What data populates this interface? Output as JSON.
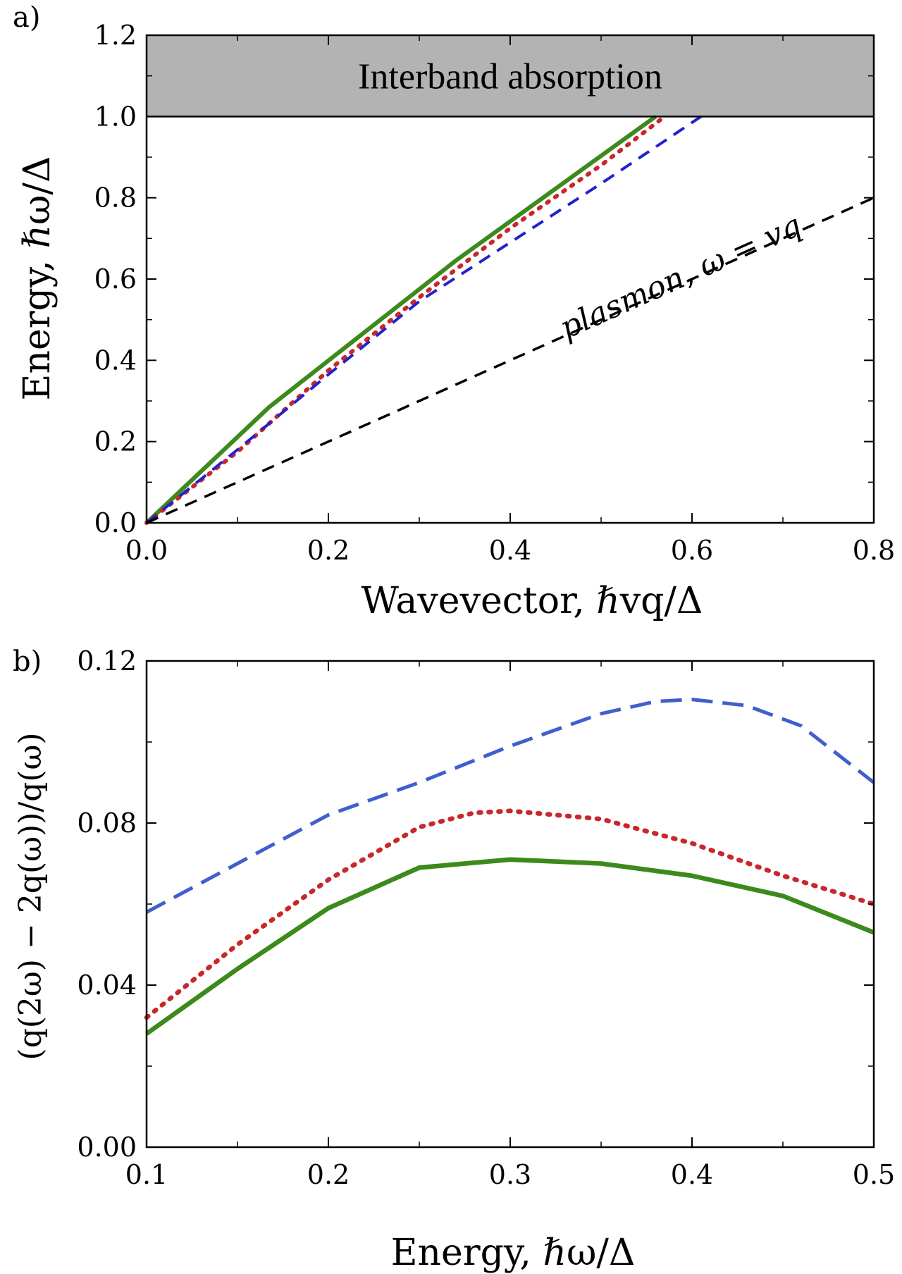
{
  "chart_data": [
    {
      "panel_label": "a)",
      "type": "line",
      "xlabel": "Wavevector,  ℏvq/Δ",
      "ylabel": "Energy,  ℏω/Δ",
      "xlim": [
        0.0,
        0.8
      ],
      "ylim": [
        0.0,
        1.2
      ],
      "x_ticks": [
        "0.0",
        "0.2",
        "0.4",
        "0.6",
        "0.8"
      ],
      "y_ticks": [
        "0.0",
        "0.2",
        "0.4",
        "0.6",
        "0.8",
        "1.0",
        "1.2"
      ],
      "shaded_region": {
        "label": "Interband absorption",
        "y_from": 1.0,
        "y_to": 1.2,
        "color": "#b3b3b3"
      },
      "annotations": [
        {
          "text": "plasmon,  ω = vq",
          "x": 0.6,
          "y": 0.6
        }
      ],
      "series": [
        {
          "name": "solid",
          "style": "solid",
          "color": "#3d8a1c",
          "x": [
            0.0,
            0.135,
            0.34,
            0.56
          ],
          "y": [
            0.0,
            0.285,
            0.645,
            1.0
          ]
        },
        {
          "name": "dotted",
          "style": "dotted",
          "color": "#c8282b",
          "x": [
            0.0,
            0.1,
            0.2,
            0.3,
            0.4,
            0.5,
            0.57
          ],
          "y": [
            0.0,
            0.175,
            0.375,
            0.555,
            0.725,
            0.88,
            1.0
          ]
        },
        {
          "name": "dashed",
          "style": "dashed",
          "color": "#2222cc",
          "x": [
            0.0,
            0.1,
            0.2,
            0.3,
            0.4,
            0.5,
            0.61
          ],
          "y": [
            0.0,
            0.18,
            0.365,
            0.545,
            0.69,
            0.835,
            1.0
          ]
        },
        {
          "name": "ω = vq",
          "style": "dashed",
          "color": "#000000",
          "x": [
            0.0,
            0.8
          ],
          "y": [
            0.0,
            0.8
          ]
        }
      ]
    },
    {
      "panel_label": "b)",
      "type": "line",
      "xlabel": "Energy,  ℏω/Δ",
      "ylabel": "(q(2ω) − 2q(ω))/q(ω)",
      "xlim": [
        0.1,
        0.5
      ],
      "ylim": [
        0.0,
        0.12
      ],
      "x_ticks": [
        "0.1",
        "0.2",
        "0.3",
        "0.4",
        "0.5"
      ],
      "y_ticks": [
        "0.00",
        "0.04",
        "0.08",
        "0.12"
      ],
      "series": [
        {
          "name": "dashed",
          "style": "dashed",
          "color": "#3f5fcf",
          "x": [
            0.1,
            0.15,
            0.2,
            0.25,
            0.3,
            0.35,
            0.38,
            0.4,
            0.43,
            0.46,
            0.5
          ],
          "y": [
            0.058,
            0.07,
            0.082,
            0.09,
            0.099,
            0.107,
            0.11,
            0.1105,
            0.109,
            0.104,
            0.09
          ]
        },
        {
          "name": "dotted",
          "style": "dotted",
          "color": "#c8282b",
          "x": [
            0.1,
            0.15,
            0.2,
            0.25,
            0.28,
            0.3,
            0.35,
            0.4,
            0.45,
            0.5
          ],
          "y": [
            0.032,
            0.05,
            0.066,
            0.079,
            0.0825,
            0.083,
            0.081,
            0.075,
            0.067,
            0.06
          ]
        },
        {
          "name": "solid",
          "style": "solid",
          "color": "#3d8a1c",
          "x": [
            0.1,
            0.15,
            0.2,
            0.25,
            0.3,
            0.35,
            0.4,
            0.45,
            0.5
          ],
          "y": [
            0.028,
            0.044,
            0.059,
            0.069,
            0.071,
            0.07,
            0.067,
            0.062,
            0.053
          ]
        }
      ]
    }
  ]
}
